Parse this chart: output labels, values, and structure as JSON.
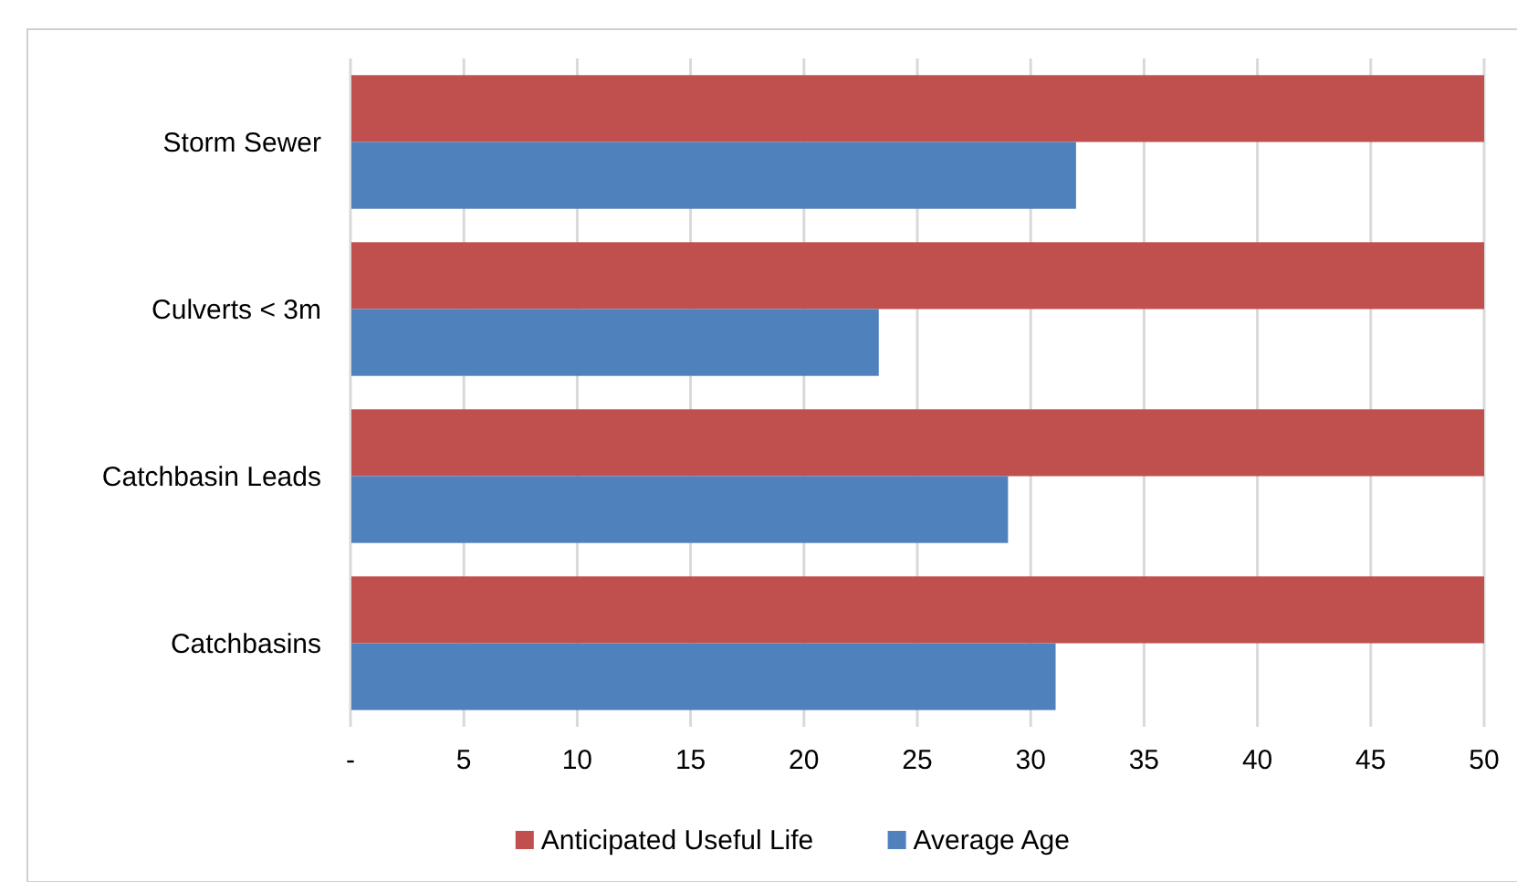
{
  "chart_data": {
    "type": "bar",
    "orientation": "horizontal",
    "categories": [
      "Storm Sewer",
      "Culverts < 3m",
      "Catchbasin Leads",
      "Catchbasins"
    ],
    "series": [
      {
        "name": "Anticipated Useful Life",
        "color": "#c0504d",
        "values": [
          50,
          50,
          50,
          50
        ]
      },
      {
        "name": "Average Age",
        "color": "#4f81bd",
        "values": [
          32,
          23.3,
          29,
          31.1
        ]
      }
    ],
    "xlim": [
      0,
      50
    ],
    "xticks": [
      {
        "value": 0,
        "label": "-"
      },
      5,
      10,
      15,
      20,
      25,
      30,
      35,
      40,
      45,
      50
    ],
    "grid": "x",
    "legend": "bottom"
  }
}
